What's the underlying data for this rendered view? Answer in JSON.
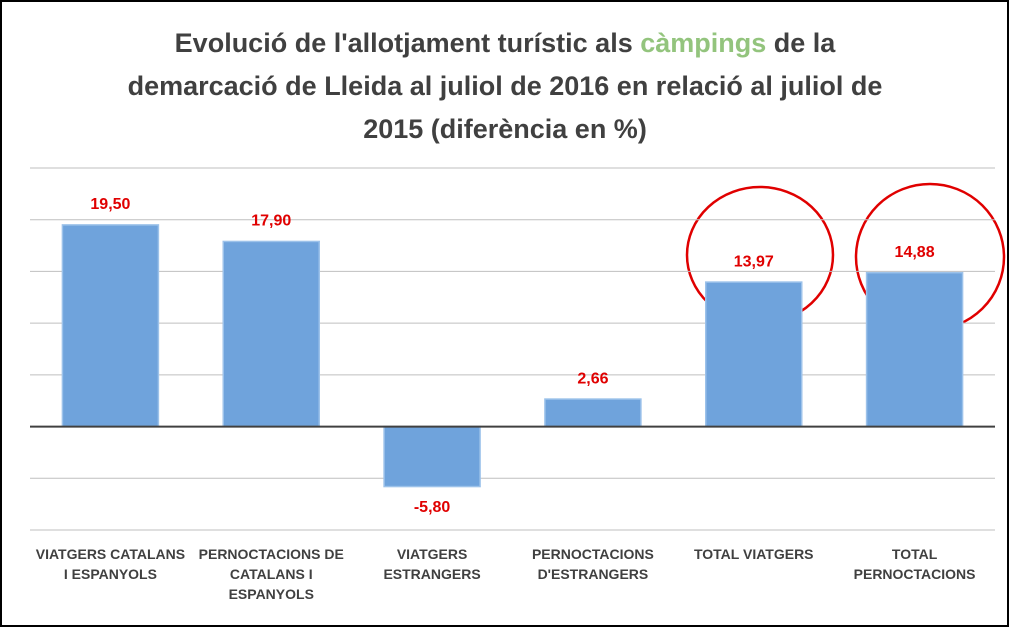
{
  "chart_data": {
    "type": "bar",
    "title": [
      {
        "text": "Evolució de l'allotjament turístic als",
        "color": "#404040"
      },
      {
        "text": "càmpings",
        "color": "#93c47d"
      },
      {
        "text": "de la demarcació de Lleida al juliol de 2016 en relació al juliol de 2015 (diferència en %)",
        "color": "#404040"
      }
    ],
    "categories": [
      "VIATGERS CATALANS I ESPANYOLS",
      "PERNOCTACIONS DE CATALANS I ESPANYOLS",
      "VIATGERS ESTRANGERS",
      "PERNOCTACIONS D'ESTRANGERS",
      "TOTAL VIATGERS",
      "TOTAL PERNOCTACIONS"
    ],
    "values": [
      19.5,
      17.9,
      -5.8,
      2.66,
      13.97,
      14.88
    ],
    "value_labels": [
      "19,50",
      "17,90",
      "-5,80",
      "2,66",
      "13,97",
      "14,88"
    ],
    "color": "#6fa3dc",
    "label_color": "#e00000",
    "ylim": [
      -10,
      25
    ],
    "yticks": [
      -10,
      -5,
      0,
      5,
      10,
      15,
      20,
      25
    ],
    "grid": true
  }
}
